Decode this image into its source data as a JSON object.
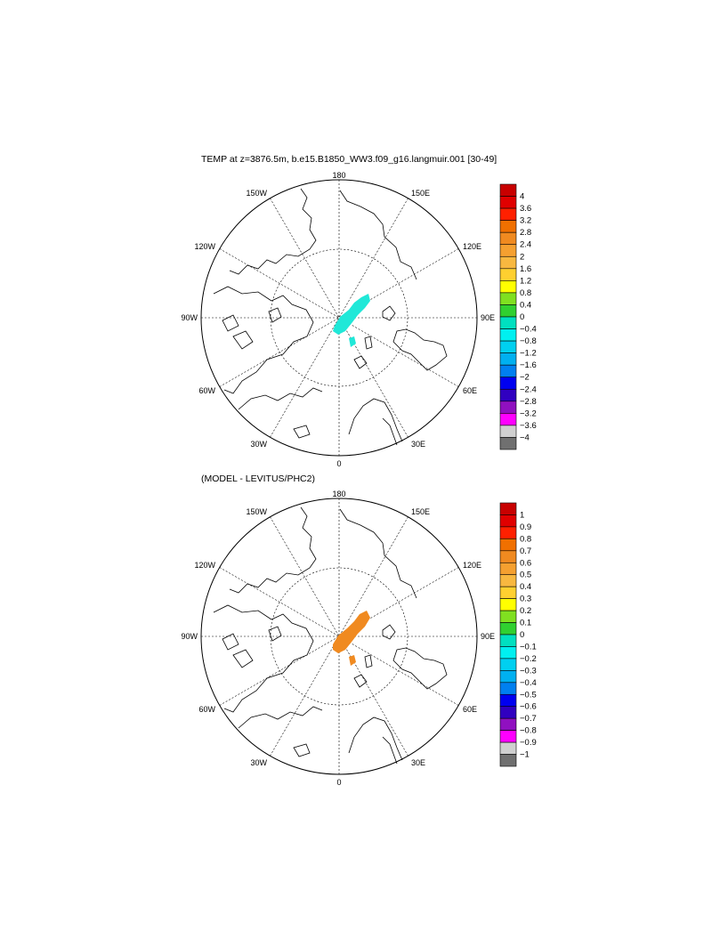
{
  "panels": [
    {
      "title": "TEMP at z=3876.5m, b.e15.B1850_WW3.f09_g16.langmuir.001 [30-49]",
      "lon_labels": {
        "top": "180",
        "bottom": "0",
        "left": "90W",
        "right": "90E",
        "upper_left_1": "150W",
        "upper_left_2": "120W",
        "upper_right_1": "150E",
        "upper_right_2": "120E",
        "lower_left_1": "60W",
        "lower_left_2": "30W",
        "lower_right_1": "60E",
        "lower_right_2": "30E"
      },
      "colorbar": {
        "labels": [
          "4",
          "3.6",
          "3.2",
          "2.8",
          "2.4",
          "2",
          "1.6",
          "1.2",
          "0.8",
          "0.4",
          "0",
          "−0.4",
          "−0.8",
          "−1.2",
          "−1.6",
          "−2",
          "−2.4",
          "−2.8",
          "−3.2",
          "−3.6",
          "−4"
        ],
        "colors": [
          "#c80000",
          "#e00000",
          "#ff2000",
          "#f07000",
          "#f08a20",
          "#f5a030",
          "#f8b840",
          "#ffd030",
          "#ffff00",
          "#80e020",
          "#30d030",
          "#00e0c0",
          "#00f0f0",
          "#00d0f0",
          "#00b0f0",
          "#0080f0",
          "#0000f0",
          "#3000c0",
          "#9010c0",
          "#ff00ff",
          "#d0d0d0",
          "#707070"
        ]
      },
      "field_color": "#20e8d8"
    },
    {
      "title": "(MODEL - LEVITUS/PHC2)",
      "lon_labels": {
        "top": "180",
        "bottom": "0",
        "left": "90W",
        "right": "90E",
        "upper_left_1": "150W",
        "upper_left_2": "120W",
        "upper_right_1": "150E",
        "upper_right_2": "120E",
        "lower_left_1": "60W",
        "lower_left_2": "30W",
        "lower_right_1": "60E",
        "lower_right_2": "30E"
      },
      "colorbar": {
        "labels": [
          "1",
          "0.9",
          "0.8",
          "0.7",
          "0.6",
          "0.5",
          "0.4",
          "0.3",
          "0.2",
          "0.1",
          "0",
          "−0.1",
          "−0.2",
          "−0.3",
          "−0.4",
          "−0.5",
          "−0.6",
          "−0.7",
          "−0.8",
          "−0.9",
          "−1"
        ],
        "colors": [
          "#c80000",
          "#e00000",
          "#ff2000",
          "#f07000",
          "#f08a20",
          "#f5a030",
          "#f8b840",
          "#ffd030",
          "#ffff00",
          "#80e020",
          "#30d030",
          "#00e0c0",
          "#00f0f0",
          "#00d0f0",
          "#00b0f0",
          "#0080f0",
          "#0000f0",
          "#3000c0",
          "#9010c0",
          "#ff00ff",
          "#d0d0d0",
          "#707070"
        ]
      },
      "field_color": "#f08a20"
    }
  ]
}
